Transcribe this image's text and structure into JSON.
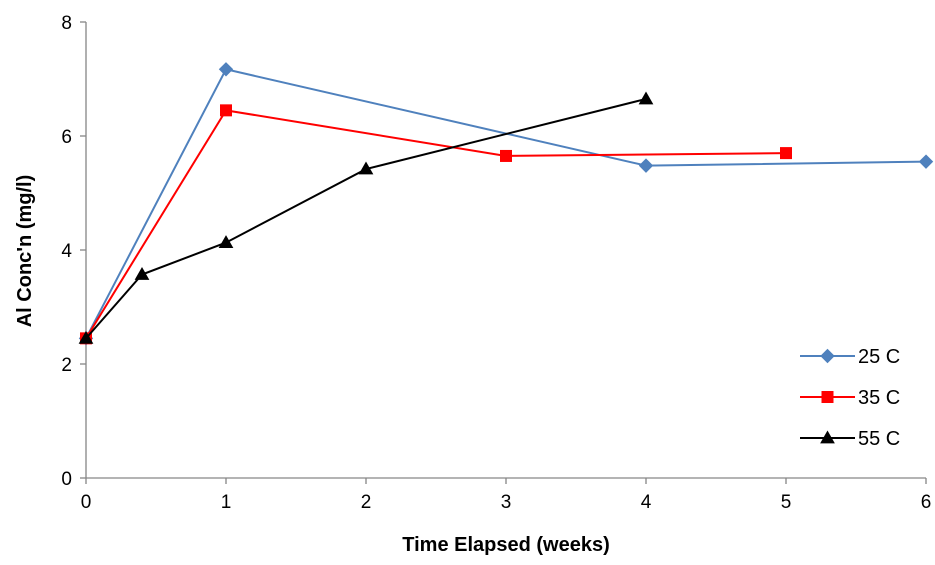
{
  "chart_data": {
    "type": "line",
    "title": "",
    "xlabel": "Time Elapsed (weeks)",
    "ylabel": "Al Conc'n (mg/l)",
    "xlim": [
      0,
      6
    ],
    "ylim": [
      0,
      8
    ],
    "xticks": [
      "0",
      "1",
      "2",
      "3",
      "4",
      "5",
      "6"
    ],
    "yticks": [
      "0",
      "2",
      "4",
      "6",
      "8"
    ],
    "grid": false,
    "legend_position": "right",
    "series": [
      {
        "name": "25 C",
        "color": "#4F81BD",
        "marker": "diamond",
        "points": [
          [
            0,
            2.45
          ],
          [
            1,
            7.17
          ],
          [
            4,
            5.48
          ],
          [
            6,
            5.55
          ]
        ]
      },
      {
        "name": "35 C",
        "color": "#FF0000",
        "marker": "square",
        "points": [
          [
            0,
            2.45
          ],
          [
            1,
            6.45
          ],
          [
            3,
            5.65
          ],
          [
            5,
            5.7
          ]
        ]
      },
      {
        "name": "55 C",
        "color": "#000000",
        "marker": "triangle",
        "points": [
          [
            0,
            2.45
          ],
          [
            0.4,
            3.57
          ],
          [
            1,
            4.13
          ],
          [
            2,
            5.42
          ],
          [
            4,
            6.65
          ]
        ]
      }
    ]
  }
}
